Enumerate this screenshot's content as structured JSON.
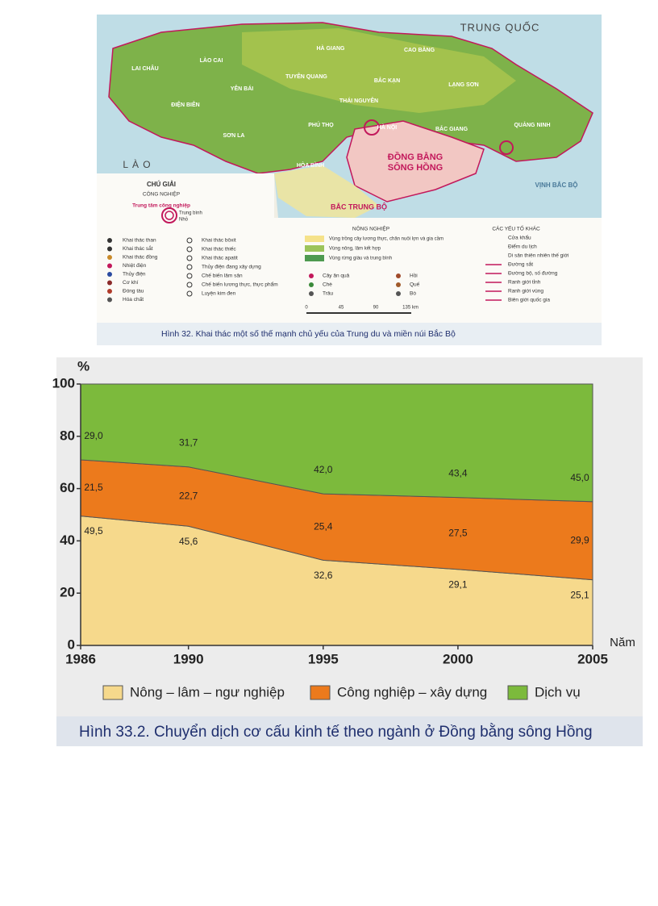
{
  "map": {
    "country_labels": [
      "TRUNG QUỐC",
      "L À O"
    ],
    "places": [
      "LAI CHÂU",
      "LÀO CAI",
      "HÀ GIANG",
      "CAO BẰNG",
      "YÊN BÁI",
      "TUYÊN QUANG",
      "BẮC KẠN",
      "LẠNG SƠN",
      "THÁI NGUYÊN",
      "ĐIỆN BIÊN",
      "SƠN LA",
      "PHÚ THỌ",
      "BẮC GIANG",
      "QUẢNG NINH",
      "HÒA BÌNH",
      "HÀ NỘI"
    ],
    "region_labels": [
      "ĐỒNG BẰNG",
      "SÔNG HỒNG",
      "BẮC TRUNG BỘ",
      "VỊNH BẮC BỘ"
    ],
    "legend_title": "CHÚ GIẢI",
    "industry": {
      "title": "CÔNG NGHIỆP",
      "center_title": "Trung tâm công nghiệp",
      "sizes": [
        "Trung bình",
        "Nhỏ"
      ],
      "items_left": [
        "Khai thác than",
        "Khai thác sắt",
        "Khai thác đồng",
        "Nhiệt điện",
        "Thủy điện",
        "Cơ khí",
        "Đóng tàu",
        "Hóa chất"
      ],
      "items_right": [
        "Khai thác bôxit",
        "Khai thác thiếc",
        "Khai thác apatit",
        "Thủy điện đang xây dựng",
        "Chế biến lâm sản",
        "Chế biến lương thực, thực phẩm",
        "Luyện kim đen"
      ]
    },
    "agriculture": {
      "title": "NÔNG NGHIỆP",
      "zones": [
        "Vùng trồng cây lương thực, chăn nuôi lợn và gia cầm",
        "Vùng nông, lâm kết hợp",
        "Vùng rừng giàu và trung bình"
      ],
      "items": [
        "Cây ăn quả",
        "Hồi",
        "Chè",
        "Quế",
        "Trâu",
        "Bò"
      ]
    },
    "other": {
      "title": "CÁC YẾU TỐ KHÁC",
      "items": [
        "Cửa khẩu",
        "Điểm du lịch",
        "Di sản thiên nhiên thế giới",
        "Đường sắt",
        "Đường bộ, số đường",
        "Ranh giới tỉnh",
        "Ranh giới vùng",
        "Biên giới quốc gia"
      ]
    },
    "scale": [
      "0",
      "45",
      "90",
      "135 km"
    ],
    "caption": "Hình 32. Khai thác một số thế mạnh chủ yếu của Trung du và miền núi Bắc Bộ"
  },
  "chart_data": {
    "type": "area",
    "stacked": true,
    "y_label": "%",
    "x_label": "Năm",
    "x": [
      1986,
      1990,
      1995,
      2000,
      2005
    ],
    "xlim": [
      1986,
      2005
    ],
    "xticks": [
      1986,
      1990,
      1995,
      2000,
      2005
    ],
    "ylim": [
      0,
      100
    ],
    "yticks": [
      0,
      20,
      40,
      60,
      80,
      100
    ],
    "series": [
      {
        "name": "Nông – lâm – ngư nghiệp",
        "color": "#f6d98c",
        "values": [
          49.5,
          45.6,
          32.6,
          29.1,
          25.1
        ],
        "value_labels": [
          "49,5",
          "45,6",
          "32,6",
          "29,1",
          "25,1"
        ]
      },
      {
        "name": "Công nghiệp – xây dựng",
        "color": "#ec7a1c",
        "values": [
          21.5,
          22.7,
          25.4,
          27.5,
          29.9
        ],
        "value_labels": [
          "21,5",
          "22,7",
          "25,4",
          "27,5",
          "29,9"
        ]
      },
      {
        "name": "Dịch vụ",
        "color": "#7cba3c",
        "values": [
          29.0,
          31.7,
          42.0,
          43.4,
          45.0
        ],
        "value_labels": [
          "29,0",
          "31,7",
          "42,0",
          "43,4",
          "45,0"
        ]
      }
    ],
    "legend": "bottom",
    "caption": "Hình 33.2. Chuyển dịch cơ cấu kinh tế theo ngành ở Đồng bằng sông Hồng"
  }
}
